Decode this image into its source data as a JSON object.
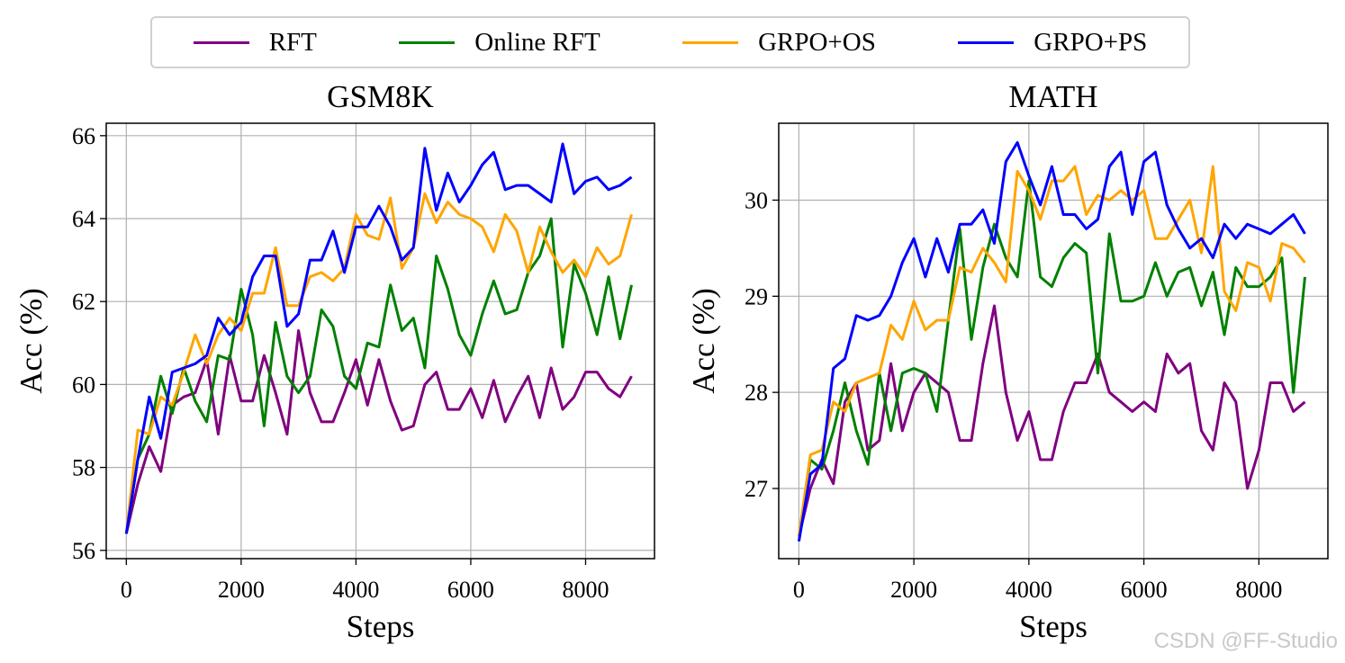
{
  "legend": {
    "entries": [
      {
        "name": "RFT",
        "color": "#800080"
      },
      {
        "name": "Online RFT",
        "color": "#008000"
      },
      {
        "name": "GRPO+OS",
        "color": "#FFA500"
      },
      {
        "name": "GRPO+PS",
        "color": "#0000FF"
      }
    ]
  },
  "watermark": "CSDN @FF-Studio",
  "chart_data": [
    {
      "type": "line",
      "title": "GSM8K",
      "xlabel": "Steps",
      "ylabel": "Acc (%)",
      "xlim": [
        -350,
        9200
      ],
      "ylim": [
        55.8,
        66.3
      ],
      "xticks": [
        0,
        2000,
        4000,
        6000,
        8000
      ],
      "yticks": [
        56,
        58,
        60,
        62,
        64,
        66
      ],
      "ytick_labels": [
        "56",
        "58",
        "60",
        "62",
        "64",
        "66"
      ],
      "grid": true,
      "x": [
        0,
        200,
        400,
        600,
        800,
        1000,
        1200,
        1400,
        1600,
        1800,
        2000,
        2200,
        2400,
        2600,
        2800,
        3000,
        3200,
        3400,
        3600,
        3800,
        4000,
        4200,
        4400,
        4600,
        4800,
        5000,
        5200,
        5400,
        5600,
        5800,
        6000,
        6200,
        6400,
        6600,
        6800,
        7000,
        7200,
        7400,
        7600,
        7800,
        8000,
        8200,
        8400,
        8600,
        8800
      ],
      "series": [
        {
          "name": "RFT",
          "color": "#800080",
          "values": [
            56.4,
            57.6,
            58.5,
            57.9,
            59.5,
            59.7,
            59.8,
            60.6,
            58.8,
            60.7,
            59.6,
            59.6,
            60.7,
            59.8,
            58.8,
            61.3,
            59.8,
            59.1,
            59.1,
            59.8,
            60.6,
            59.5,
            60.6,
            59.6,
            58.9,
            59.0,
            60.0,
            60.3,
            59.4,
            59.4,
            59.9,
            59.2,
            60.1,
            59.1,
            59.7,
            60.2,
            59.2,
            60.4,
            59.4,
            59.7,
            60.3,
            60.3,
            59.9,
            59.7,
            60.2
          ]
        },
        {
          "name": "Online RFT",
          "color": "#008000",
          "values": [
            56.4,
            58.2,
            58.8,
            60.2,
            59.3,
            60.4,
            59.6,
            59.1,
            60.7,
            60.6,
            62.3,
            61.2,
            59.0,
            61.5,
            60.2,
            59.8,
            60.2,
            61.8,
            61.4,
            60.2,
            59.9,
            61.0,
            60.9,
            62.4,
            61.3,
            61.6,
            60.4,
            63.1,
            62.3,
            61.2,
            60.7,
            61.7,
            62.5,
            61.7,
            61.8,
            62.7,
            63.1,
            64.0,
            60.9,
            62.9,
            62.2,
            61.2,
            62.6,
            61.1,
            62.4
          ]
        },
        {
          "name": "GRPO+OS",
          "color": "#FFA500",
          "values": [
            56.4,
            58.9,
            58.8,
            59.7,
            59.5,
            60.3,
            61.2,
            60.5,
            61.2,
            61.6,
            61.3,
            62.2,
            62.2,
            63.3,
            61.9,
            61.9,
            62.6,
            62.7,
            62.5,
            62.8,
            64.1,
            63.6,
            63.5,
            64.5,
            62.8,
            63.3,
            64.6,
            63.9,
            64.4,
            64.1,
            64.0,
            63.8,
            63.2,
            64.1,
            63.7,
            62.7,
            63.8,
            63.2,
            62.7,
            63.0,
            62.6,
            63.3,
            62.9,
            63.1,
            64.1
          ]
        },
        {
          "name": "GRPO+PS",
          "color": "#0000FF",
          "values": [
            56.4,
            58.2,
            59.7,
            58.7,
            60.3,
            60.4,
            60.5,
            60.7,
            61.6,
            61.2,
            61.5,
            62.6,
            63.1,
            63.1,
            61.4,
            61.7,
            63.0,
            63.0,
            63.7,
            62.7,
            63.8,
            63.8,
            64.3,
            63.8,
            63.0,
            63.3,
            65.7,
            64.2,
            65.1,
            64.4,
            64.8,
            65.3,
            65.6,
            64.7,
            64.8,
            64.8,
            64.6,
            64.4,
            65.8,
            64.6,
            64.9,
            65.0,
            64.7,
            64.8,
            65.0
          ]
        }
      ]
    },
    {
      "type": "line",
      "title": "MATH",
      "xlabel": "Steps",
      "ylabel": "Acc (%)",
      "xlim": [
        -350,
        9200
      ],
      "ylim": [
        26.27,
        30.8
      ],
      "xticks": [
        0,
        2000,
        4000,
        6000,
        8000
      ],
      "yticks": [
        27,
        28,
        29,
        30
      ],
      "ytick_labels": [
        "27",
        "28",
        "29",
        "30"
      ],
      "grid": true,
      "x": [
        0,
        200,
        400,
        600,
        800,
        1000,
        1200,
        1400,
        1600,
        1800,
        2000,
        2200,
        2400,
        2600,
        2800,
        3000,
        3200,
        3400,
        3600,
        3800,
        4000,
        4200,
        4400,
        4600,
        4800,
        5000,
        5200,
        5400,
        5600,
        5800,
        6000,
        6200,
        6400,
        6600,
        6800,
        7000,
        7200,
        7400,
        7600,
        7800,
        8000,
        8200,
        8400,
        8600,
        8800
      ],
      "series": [
        {
          "name": "RFT",
          "color": "#800080",
          "values": [
            26.5,
            27.0,
            27.3,
            27.05,
            27.9,
            28.1,
            27.4,
            27.5,
            28.3,
            27.6,
            28.0,
            28.2,
            28.1,
            28.0,
            27.5,
            27.5,
            28.3,
            28.9,
            28.0,
            27.5,
            27.8,
            27.3,
            27.3,
            27.8,
            28.1,
            28.1,
            28.4,
            28.0,
            27.9,
            27.8,
            27.9,
            27.8,
            28.4,
            28.2,
            28.3,
            27.6,
            27.4,
            28.1,
            27.9,
            27.0,
            27.4,
            28.1,
            28.1,
            27.8,
            27.9
          ]
        },
        {
          "name": "Online RFT",
          "color": "#008000",
          "values": [
            26.5,
            27.3,
            27.2,
            27.6,
            28.1,
            27.6,
            27.25,
            28.2,
            27.6,
            28.2,
            28.25,
            28.2,
            27.8,
            28.75,
            29.7,
            28.55,
            29.3,
            29.75,
            29.4,
            29.2,
            30.2,
            29.2,
            29.1,
            29.4,
            29.55,
            29.45,
            28.2,
            29.65,
            28.95,
            28.95,
            29.0,
            29.35,
            29.0,
            29.25,
            29.3,
            28.9,
            29.25,
            28.6,
            29.3,
            29.1,
            29.1,
            29.2,
            29.4,
            28.0,
            29.2
          ]
        },
        {
          "name": "GRPO+OS",
          "color": "#FFA500",
          "values": [
            26.5,
            27.35,
            27.4,
            27.9,
            27.8,
            28.1,
            28.15,
            28.2,
            28.7,
            28.55,
            28.95,
            28.65,
            28.75,
            28.75,
            29.3,
            29.25,
            29.5,
            29.35,
            29.15,
            30.3,
            30.1,
            29.8,
            30.2,
            30.2,
            30.35,
            29.85,
            30.05,
            30.0,
            30.1,
            30.0,
            30.1,
            29.6,
            29.6,
            29.8,
            30.0,
            29.45,
            30.35,
            29.05,
            28.85,
            29.35,
            29.3,
            28.95,
            29.55,
            29.5,
            29.35
          ]
        },
        {
          "name": "GRPO+PS",
          "color": "#0000FF",
          "values": [
            26.45,
            27.15,
            27.25,
            28.25,
            28.35,
            28.8,
            28.75,
            28.8,
            29.0,
            29.35,
            29.6,
            29.2,
            29.6,
            29.25,
            29.75,
            29.75,
            29.9,
            29.55,
            30.4,
            30.6,
            30.25,
            29.95,
            30.35,
            29.85,
            29.85,
            29.7,
            29.8,
            30.35,
            30.5,
            29.85,
            30.4,
            30.5,
            29.95,
            29.7,
            29.5,
            29.6,
            29.4,
            29.75,
            29.6,
            29.75,
            29.7,
            29.65,
            29.75,
            29.85,
            29.65
          ]
        }
      ]
    }
  ]
}
